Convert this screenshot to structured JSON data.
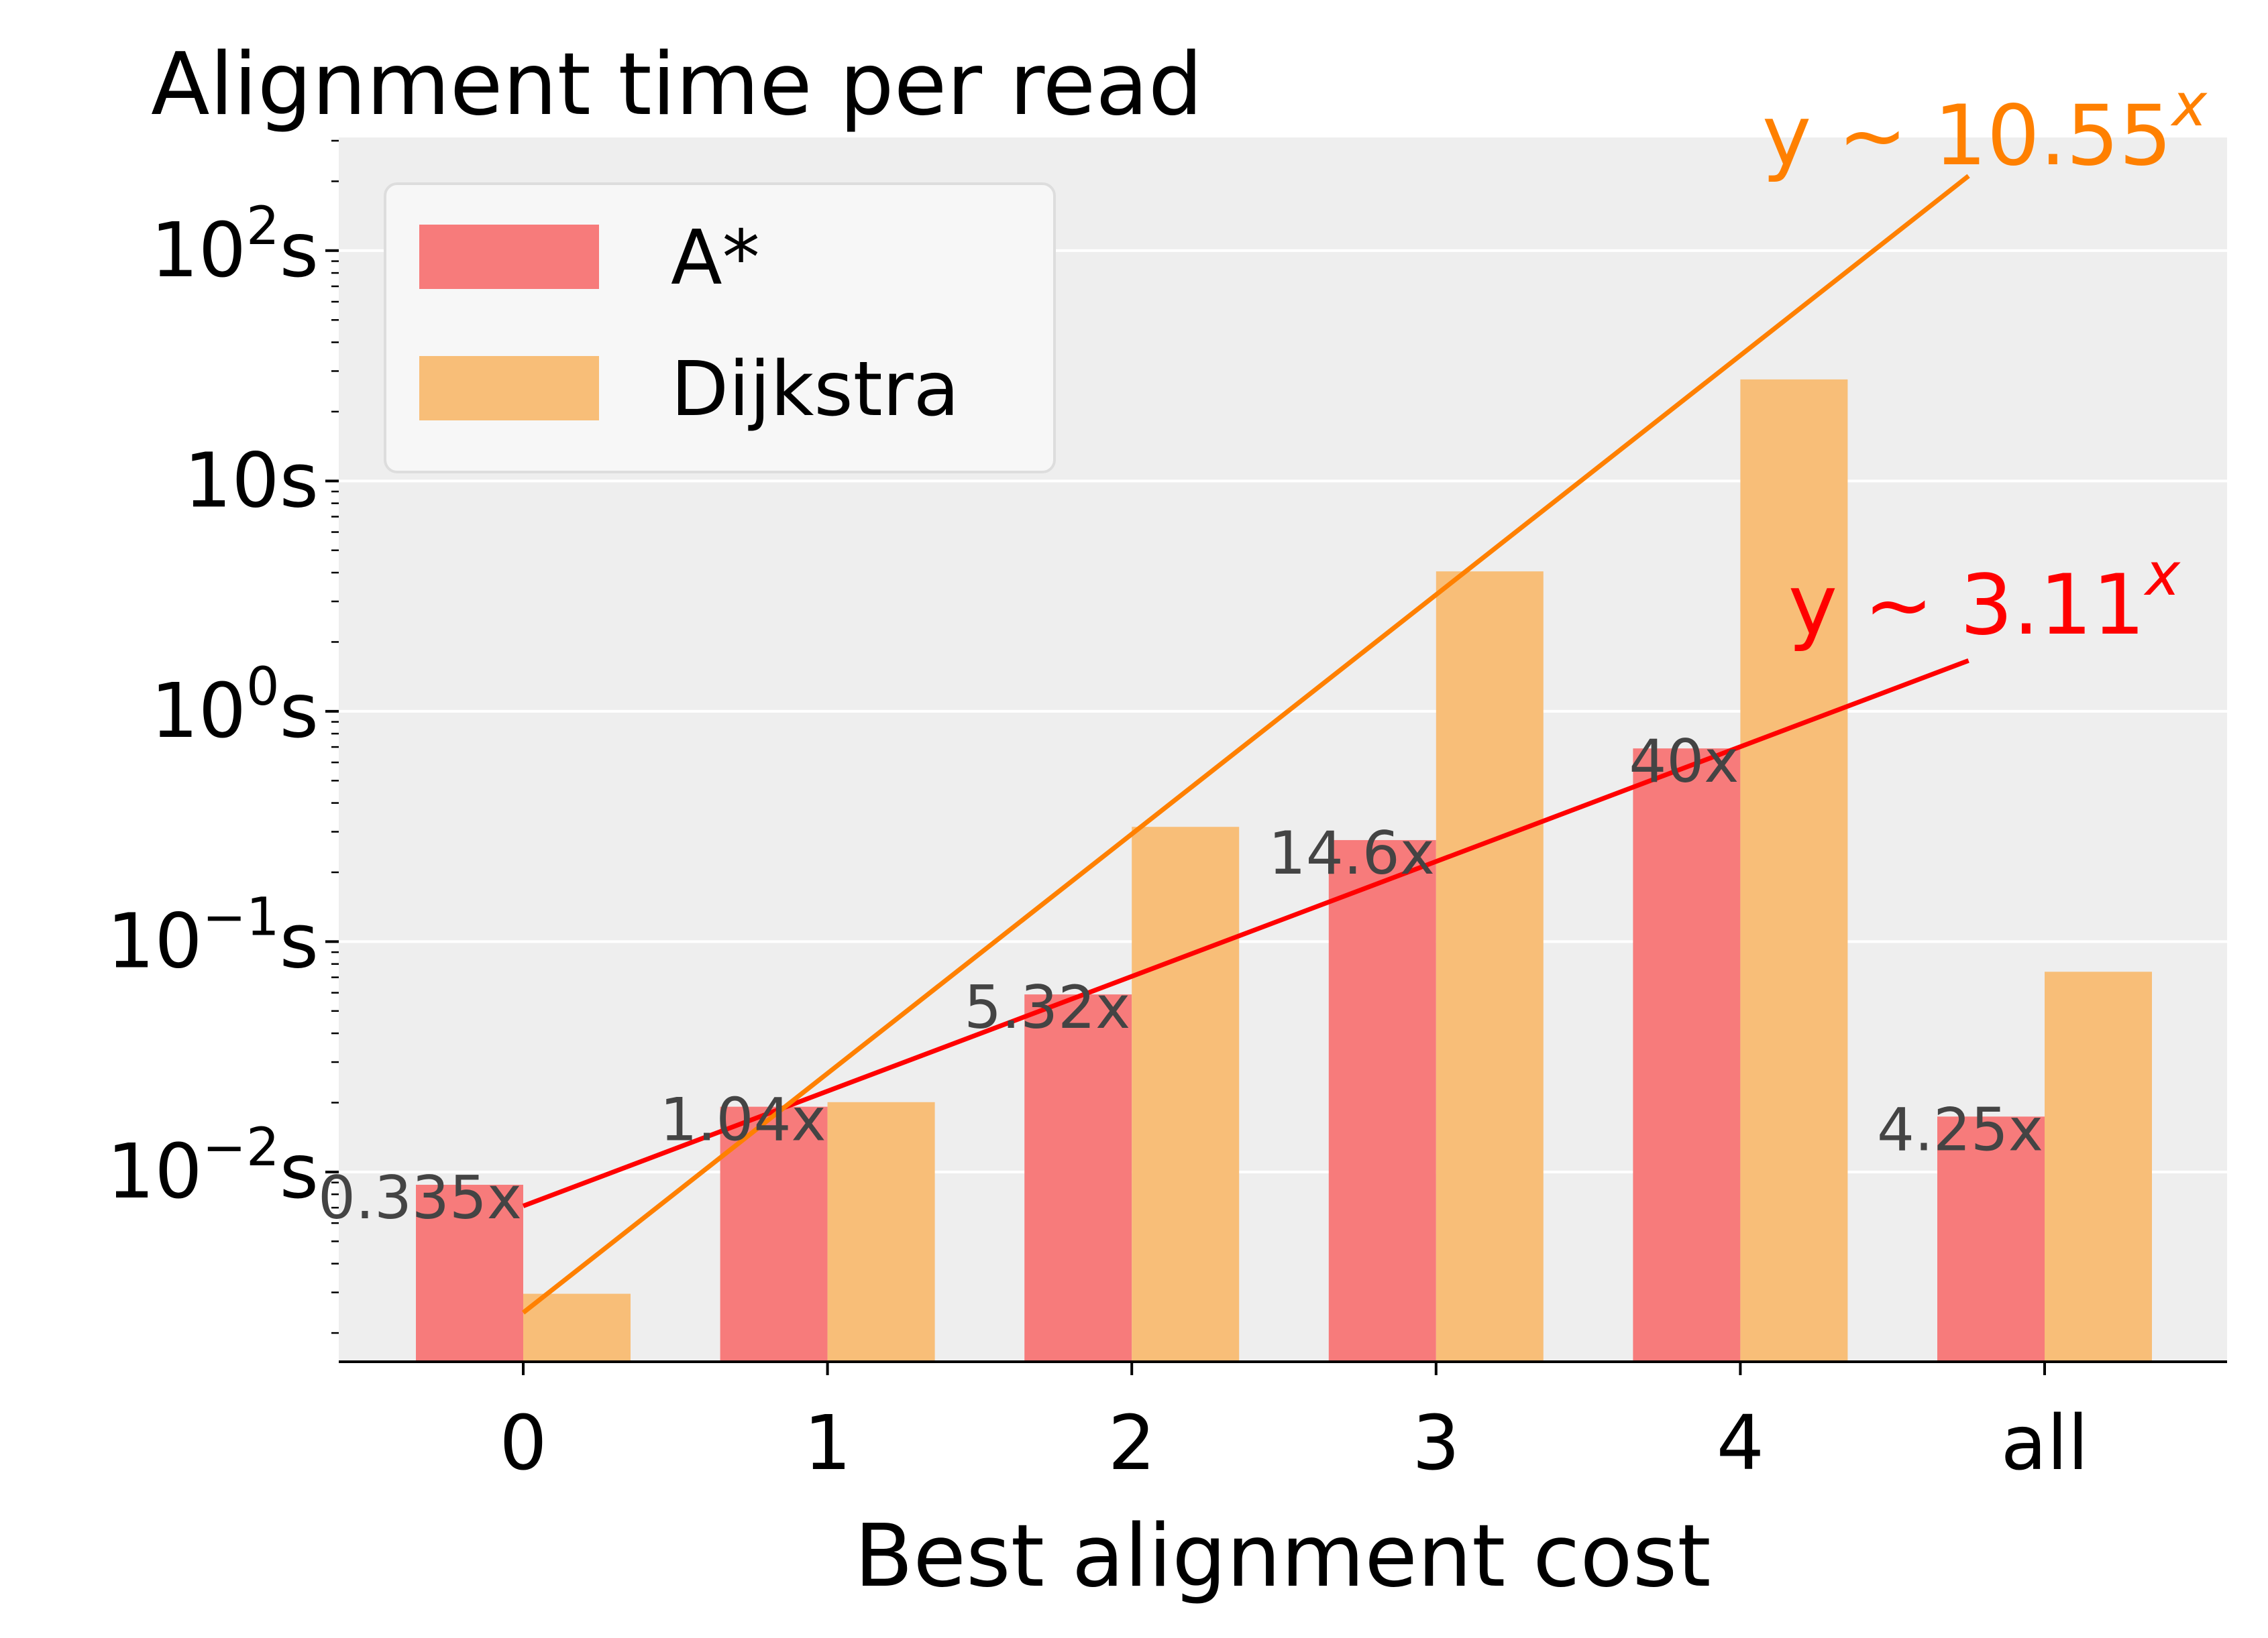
{
  "chart_data": {
    "type": "bar",
    "title": "Alignment time per read",
    "xlabel": "Best alignment cost",
    "ylabel": "",
    "yscale": "log",
    "ylim": [
      0.0015,
      310
    ],
    "grid": "horizontal",
    "categories": [
      "0",
      "1",
      "2",
      "3",
      "4",
      "all"
    ],
    "series": [
      {
        "name": "A*",
        "color": "#f77b7b",
        "values": [
          0.0088,
          0.0192,
          0.059,
          0.276,
          0.69,
          0.0174
        ]
      },
      {
        "name": "Dijkstra",
        "color": "#f8be78",
        "values": [
          0.00296,
          0.0201,
          0.315,
          4.05,
          27.6,
          0.074
        ]
      }
    ],
    "ratio_labels": [
      "0.335x",
      "1.04x",
      "5.32x",
      "14.6x",
      "40x",
      "4.25x"
    ],
    "yticks": [
      {
        "value": 0.01,
        "base": "10",
        "exp": "−2",
        "unit": "s"
      },
      {
        "value": 0.1,
        "base": "10",
        "exp": "−1",
        "unit": "s"
      },
      {
        "value": 1,
        "base": "10",
        "exp": "0",
        "unit": "s"
      },
      {
        "value": 10,
        "base": "10s",
        "exp": "",
        "unit": ""
      },
      {
        "value": 100,
        "base": "10",
        "exp": "2",
        "unit": "s"
      }
    ],
    "fits": [
      {
        "series": "A*",
        "color": "#ff0000",
        "label_main": "y ~ 3.11",
        "label_exp": "x",
        "base": 3.11,
        "from": {
          "x": 0,
          "y": 0.00712
        },
        "to": {
          "x": 4.75,
          "y": 1.66
        }
      },
      {
        "series": "Dijkstra",
        "color": "#ff8000",
        "label_main": "y ~ 10.55",
        "label_exp": "x",
        "base": 10.55,
        "from": {
          "x": 0,
          "y": 0.00245
        },
        "to": {
          "x": 4.75,
          "y": 211
        }
      }
    ],
    "legend": {
      "position": "top-left"
    },
    "colors": {
      "plot_bg": "#eeeeee",
      "grid": "#ffffff",
      "ratio_text": "#444444"
    }
  }
}
